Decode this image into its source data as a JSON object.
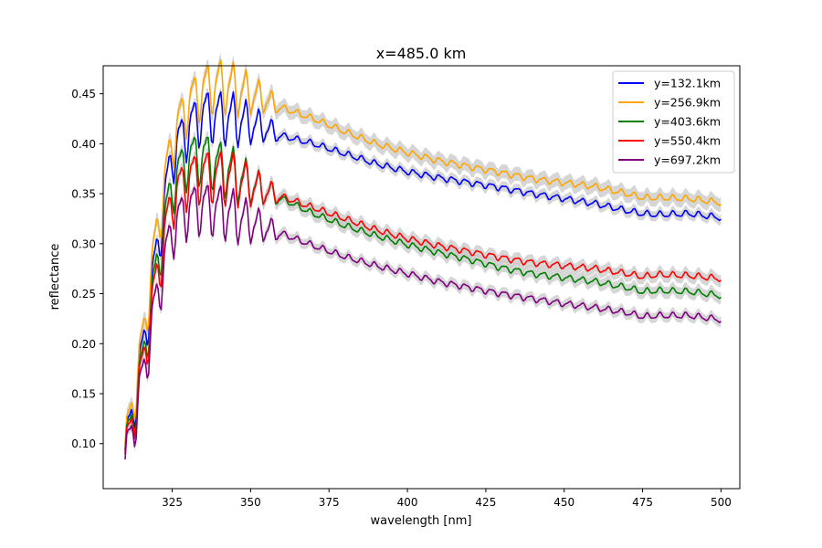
{
  "chart_data": {
    "type": "line",
    "title": "x=485.0 km",
    "xlabel": "wavelength [nm]",
    "ylabel": "reflectance",
    "xlim": [
      303,
      506
    ],
    "ylim": [
      0.055,
      0.478
    ],
    "x_ticks": [
      325,
      350,
      375,
      400,
      425,
      450,
      475,
      500
    ],
    "y_ticks": [
      0.1,
      0.15,
      0.2,
      0.25,
      0.3,
      0.35,
      0.4,
      0.45
    ],
    "x_tick_labels": [
      "325",
      "350",
      "375",
      "400",
      "425",
      "450",
      "475",
      "500"
    ],
    "y_tick_labels": [
      "0.10",
      "0.15",
      "0.20",
      "0.25",
      "0.30",
      "0.35",
      "0.40",
      "0.45"
    ],
    "grid": false,
    "legend_position": "top-right",
    "uncertainty_band_color": "#c8c8c8",
    "series": [
      {
        "name": "y=132.1km",
        "color": "#0000ff",
        "band": 0.005,
        "points": [
          [
            310,
            0.09
          ],
          [
            315,
            0.18
          ],
          [
            320,
            0.29
          ],
          [
            325,
            0.39
          ],
          [
            330,
            0.415
          ],
          [
            335,
            0.43
          ],
          [
            340,
            0.428
          ],
          [
            345,
            0.425
          ],
          [
            350,
            0.42
          ],
          [
            355,
            0.415
          ],
          [
            360,
            0.408
          ],
          [
            370,
            0.4
          ],
          [
            380,
            0.39
          ],
          [
            390,
            0.38
          ],
          [
            400,
            0.372
          ],
          [
            410,
            0.366
          ],
          [
            420,
            0.361
          ],
          [
            430,
            0.356
          ],
          [
            440,
            0.35
          ],
          [
            450,
            0.345
          ],
          [
            460,
            0.34
          ],
          [
            470,
            0.333
          ],
          [
            475,
            0.33
          ],
          [
            480,
            0.329
          ],
          [
            490,
            0.33
          ],
          [
            500,
            0.326
          ]
        ]
      },
      {
        "name": "y=256.9km",
        "color": "#ffa500",
        "band": 0.007,
        "points": [
          [
            310,
            0.095
          ],
          [
            315,
            0.19
          ],
          [
            320,
            0.31
          ],
          [
            325,
            0.405
          ],
          [
            330,
            0.44
          ],
          [
            335,
            0.455
          ],
          [
            340,
            0.46
          ],
          [
            345,
            0.455
          ],
          [
            350,
            0.45
          ],
          [
            355,
            0.444
          ],
          [
            360,
            0.436
          ],
          [
            370,
            0.425
          ],
          [
            380,
            0.412
          ],
          [
            390,
            0.4
          ],
          [
            400,
            0.391
          ],
          [
            410,
            0.383
          ],
          [
            420,
            0.377
          ],
          [
            430,
            0.371
          ],
          [
            440,
            0.365
          ],
          [
            450,
            0.361
          ],
          [
            460,
            0.357
          ],
          [
            470,
            0.35
          ],
          [
            475,
            0.346
          ],
          [
            480,
            0.346
          ],
          [
            490,
            0.345
          ],
          [
            500,
            0.341
          ]
        ]
      },
      {
        "name": "y=403.6km",
        "color": "#008000",
        "band": 0.006,
        "points": [
          [
            310,
            0.088
          ],
          [
            315,
            0.17
          ],
          [
            320,
            0.275
          ],
          [
            325,
            0.36
          ],
          [
            330,
            0.385
          ],
          [
            335,
            0.388
          ],
          [
            340,
            0.378
          ],
          [
            345,
            0.37
          ],
          [
            350,
            0.36
          ],
          [
            360,
            0.345
          ],
          [
            370,
            0.33
          ],
          [
            380,
            0.318
          ],
          [
            390,
            0.308
          ],
          [
            400,
            0.299
          ],
          [
            410,
            0.291
          ],
          [
            420,
            0.284
          ],
          [
            430,
            0.276
          ],
          [
            440,
            0.27
          ],
          [
            450,
            0.266
          ],
          [
            460,
            0.262
          ],
          [
            470,
            0.256
          ],
          [
            475,
            0.252
          ],
          [
            480,
            0.253
          ],
          [
            490,
            0.252
          ],
          [
            500,
            0.248
          ]
        ]
      },
      {
        "name": "y=550.4km",
        "color": "#ff0000",
        "band": 0.006,
        "points": [
          [
            310,
            0.085
          ],
          [
            315,
            0.165
          ],
          [
            320,
            0.265
          ],
          [
            325,
            0.345
          ],
          [
            330,
            0.365
          ],
          [
            335,
            0.37
          ],
          [
            340,
            0.368
          ],
          [
            345,
            0.365
          ],
          [
            350,
            0.358
          ],
          [
            360,
            0.347
          ],
          [
            370,
            0.336
          ],
          [
            380,
            0.325
          ],
          [
            390,
            0.314
          ],
          [
            400,
            0.305
          ],
          [
            410,
            0.298
          ],
          [
            420,
            0.292
          ],
          [
            430,
            0.286
          ],
          [
            440,
            0.281
          ],
          [
            450,
            0.278
          ],
          [
            460,
            0.275
          ],
          [
            470,
            0.27
          ],
          [
            475,
            0.267
          ],
          [
            480,
            0.269
          ],
          [
            490,
            0.268
          ],
          [
            500,
            0.265
          ]
        ]
      },
      {
        "name": "y=697.2km",
        "color": "#800080",
        "band": 0.005,
        "points": [
          [
            310,
            0.08
          ],
          [
            315,
            0.155
          ],
          [
            320,
            0.245
          ],
          [
            325,
            0.315
          ],
          [
            330,
            0.335
          ],
          [
            335,
            0.338
          ],
          [
            340,
            0.334
          ],
          [
            345,
            0.328
          ],
          [
            350,
            0.321
          ],
          [
            360,
            0.31
          ],
          [
            370,
            0.298
          ],
          [
            380,
            0.287
          ],
          [
            390,
            0.278
          ],
          [
            400,
            0.27
          ],
          [
            410,
            0.262
          ],
          [
            420,
            0.256
          ],
          [
            430,
            0.25
          ],
          [
            440,
            0.245
          ],
          [
            450,
            0.24
          ],
          [
            460,
            0.236
          ],
          [
            470,
            0.231
          ],
          [
            475,
            0.227
          ],
          [
            480,
            0.228
          ],
          [
            490,
            0.228
          ],
          [
            500,
            0.224
          ]
        ]
      }
    ]
  }
}
